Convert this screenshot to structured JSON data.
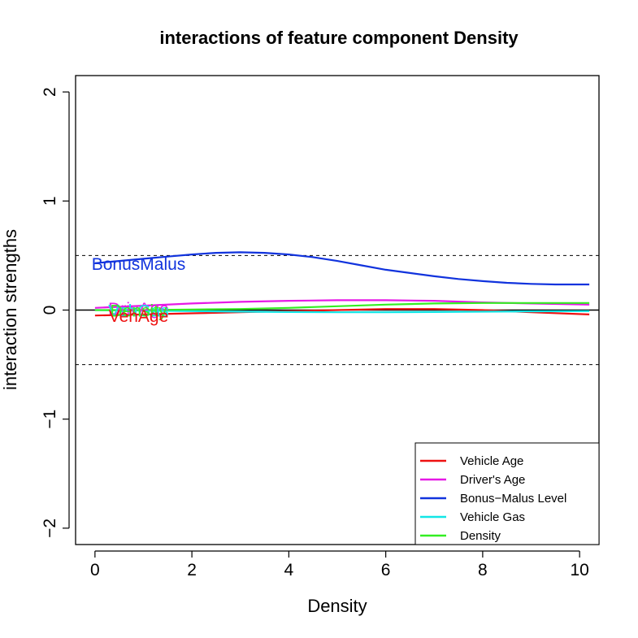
{
  "chart_data": {
    "type": "line",
    "title": "interactions of feature component Density",
    "xlabel": "Density",
    "ylabel": "interaction strengths",
    "xlim": [
      -0.4,
      10.4
    ],
    "ylim": [
      -2.15,
      2.15
    ],
    "xticks": [
      "0",
      "2",
      "4",
      "6",
      "8",
      "10"
    ],
    "xtick_values": [
      0,
      2,
      4,
      6,
      8,
      10
    ],
    "yticks": [
      "−2",
      "−1",
      "0",
      "1",
      "2"
    ],
    "ytick_values": [
      -2,
      -1,
      0,
      1,
      2
    ],
    "reference_lines": [
      {
        "y": 0,
        "style": "solid",
        "color": "#000000"
      },
      {
        "y": 0.5,
        "style": "dashed",
        "color": "#000000"
      },
      {
        "y": -0.5,
        "style": "dashed",
        "color": "#000000"
      }
    ],
    "series": [
      {
        "name": "Vehicle Age",
        "color": "#ee1111",
        "x": [
          0,
          1,
          2,
          3,
          4,
          5,
          6,
          7,
          8,
          9,
          10.2
        ],
        "y": [
          -0.05,
          -0.04,
          -0.03,
          -0.02,
          -0.01,
          0.0,
          0.01,
          0.01,
          0.0,
          -0.02,
          -0.04
        ]
      },
      {
        "name": "Driver's Age",
        "color": "#e619e6",
        "x": [
          0,
          1,
          2,
          3,
          4,
          5,
          6,
          7,
          8,
          9,
          10.2
        ],
        "y": [
          0.02,
          0.04,
          0.06,
          0.075,
          0.085,
          0.09,
          0.09,
          0.085,
          0.07,
          0.06,
          0.05
        ]
      },
      {
        "name": "Bonus-Malus Level",
        "color": "#1133dd",
        "x": [
          0,
          0.5,
          1,
          1.5,
          2,
          2.5,
          3,
          3.5,
          4,
          4.5,
          5,
          5.5,
          6,
          6.5,
          7,
          7.5,
          8,
          8.5,
          9,
          9.5,
          10.2
        ],
        "y": [
          0.43,
          0.45,
          0.47,
          0.49,
          0.51,
          0.525,
          0.53,
          0.525,
          0.51,
          0.485,
          0.45,
          0.41,
          0.37,
          0.34,
          0.31,
          0.285,
          0.265,
          0.25,
          0.24,
          0.235,
          0.235
        ]
      },
      {
        "name": "Vehicle Gas",
        "color": "#11e6e6",
        "x": [
          0,
          1,
          2,
          3,
          4,
          5,
          6,
          7,
          8,
          9,
          10.2
        ],
        "y": [
          0.0,
          -0.005,
          -0.01,
          -0.015,
          -0.018,
          -0.02,
          -0.02,
          -0.018,
          -0.015,
          -0.012,
          -0.01
        ]
      },
      {
        "name": "Density",
        "color": "#33ee22",
        "x": [
          0,
          1,
          2,
          3,
          4,
          5,
          6,
          7,
          8,
          9,
          10.2
        ],
        "y": [
          0.0,
          0.0,
          0.005,
          0.01,
          0.02,
          0.035,
          0.05,
          0.06,
          0.065,
          0.065,
          0.065
        ]
      }
    ],
    "series_labels": [
      {
        "text": "BonusMalus",
        "color": "#1133dd",
        "x": 0.9,
        "y": 0.43
      },
      {
        "text": "DrivAge",
        "color": "#e619e6",
        "x": 0.9,
        "y": 0.02
      },
      {
        "text": "VehGas",
        "color": "#11e6e6",
        "x": 0.9,
        "y": 0.0
      },
      {
        "text": "Density",
        "color": "#33ee22",
        "x": 0.9,
        "y": 0.0
      },
      {
        "text": "VehAge",
        "color": "#ee1111",
        "x": 0.9,
        "y": -0.05
      }
    ],
    "legend": {
      "position": "bottom-right",
      "entries": [
        "Vehicle Age",
        "Driver's Age",
        "Bonus−Malus Level",
        "Vehicle Gas",
        "Density"
      ]
    }
  }
}
